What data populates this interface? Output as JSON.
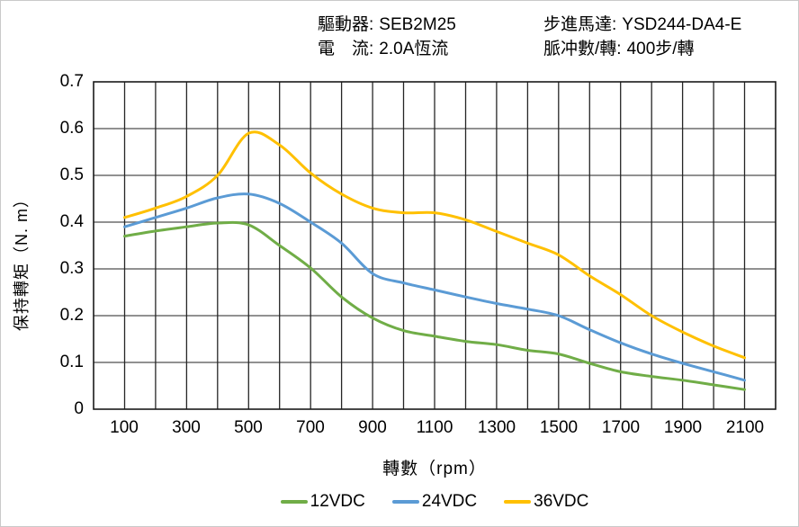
{
  "header": {
    "items": [
      {
        "label": "驅動器:",
        "value": "SEB2M25"
      },
      {
        "label": "電　流:",
        "value": "2.0A恆流"
      },
      {
        "label": "步進馬達:",
        "value": "YSD244-DA4-E"
      },
      {
        "label": "脈冲數/轉:",
        "value": "400步/轉"
      }
    ]
  },
  "chart_data": {
    "type": "line",
    "xlabel": "轉數（rpm）",
    "ylabel": "保持轉矩（N. m）",
    "xlim": [
      0,
      2200
    ],
    "ylim": [
      0,
      0.7
    ],
    "x_grid_step": 100,
    "y_grid_step": 0.1,
    "grid": true,
    "legend_position": "bottom",
    "x": [
      100,
      200,
      300,
      400,
      500,
      600,
      700,
      800,
      900,
      1000,
      1100,
      1200,
      1300,
      1400,
      1500,
      1600,
      1700,
      1800,
      1900,
      2000,
      2100
    ],
    "x_tick_labels": [
      "100",
      "300",
      "500",
      "700",
      "900",
      "1100",
      "1300",
      "1500",
      "1700",
      "1900",
      "2100"
    ],
    "y_tick_labels": [
      "0",
      "0.1",
      "0.2",
      "0.3",
      "0.4",
      "0.5",
      "0.6",
      "0.7"
    ],
    "series": [
      {
        "name": "12VDC",
        "color": "#70AD47",
        "values": [
          0.37,
          0.381,
          0.39,
          0.398,
          0.394,
          0.35,
          0.302,
          0.24,
          0.195,
          0.168,
          0.156,
          0.145,
          0.138,
          0.126,
          0.118,
          0.098,
          0.08,
          0.07,
          0.062,
          0.052,
          0.042
        ]
      },
      {
        "name": "24VDC",
        "color": "#5B9BD5",
        "values": [
          0.39,
          0.41,
          0.43,
          0.452,
          0.46,
          0.44,
          0.4,
          0.355,
          0.29,
          0.27,
          0.255,
          0.24,
          0.226,
          0.214,
          0.2,
          0.17,
          0.142,
          0.118,
          0.098,
          0.08,
          0.062
        ]
      },
      {
        "name": "36VDC",
        "color": "#FFC000",
        "values": [
          0.41,
          0.43,
          0.455,
          0.5,
          0.59,
          0.565,
          0.505,
          0.46,
          0.43,
          0.42,
          0.42,
          0.405,
          0.38,
          0.355,
          0.33,
          0.285,
          0.245,
          0.2,
          0.165,
          0.135,
          0.11
        ]
      }
    ],
    "style": {
      "v_grid_color": "#262626",
      "h_grid_color": "#6d6d6d",
      "border_color": "#1a1a1a",
      "line_width": 3
    }
  }
}
